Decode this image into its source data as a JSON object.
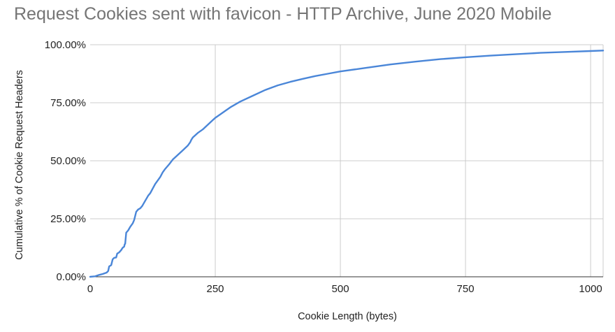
{
  "chart_data": {
    "type": "line",
    "title": "Request Cookies sent with favicon - HTTP Archive, June 2020 Mobile",
    "xlabel": "Cookie Length (bytes)",
    "ylabel": "Cumulative % of Cookie Request Headers",
    "xlim": [
      0,
      1025
    ],
    "ylim": [
      0,
      100
    ],
    "x_ticks": [
      0,
      250,
      500,
      750,
      1000
    ],
    "x_tick_labels": [
      "0",
      "250",
      "500",
      "750",
      "1000"
    ],
    "y_ticks": [
      0,
      25,
      50,
      75,
      100
    ],
    "y_tick_labels": [
      "0.00%",
      "25.00%",
      "50.00%",
      "75.00%",
      "100.00%"
    ],
    "grid": true,
    "colors": {
      "line": "#4a86d8",
      "grid": "#cccccc",
      "axis": "#333333",
      "title": "#757575"
    },
    "series": [
      {
        "points": [
          [
            0,
            0
          ],
          [
            10,
            0.2
          ],
          [
            18,
            0.8
          ],
          [
            25,
            1.2
          ],
          [
            33,
            1.8
          ],
          [
            36,
            2.5
          ],
          [
            38,
            4.5
          ],
          [
            42,
            5
          ],
          [
            45,
            7.5
          ],
          [
            48,
            8.2
          ],
          [
            52,
            8.3
          ],
          [
            54,
            10
          ],
          [
            58,
            10.5
          ],
          [
            62,
            11.5
          ],
          [
            65,
            12.5
          ],
          [
            68,
            13
          ],
          [
            69,
            14
          ],
          [
            70,
            14.2
          ],
          [
            72,
            19
          ],
          [
            76,
            20
          ],
          [
            80,
            21.5
          ],
          [
            85,
            23
          ],
          [
            88,
            24.5
          ],
          [
            92,
            28
          ],
          [
            96,
            29
          ],
          [
            100,
            29.5
          ],
          [
            104,
            30.5
          ],
          [
            108,
            32
          ],
          [
            112,
            33.5
          ],
          [
            116,
            35
          ],
          [
            120,
            36
          ],
          [
            125,
            38
          ],
          [
            130,
            40
          ],
          [
            135,
            41.5
          ],
          [
            140,
            43
          ],
          [
            145,
            45
          ],
          [
            150,
            46.5
          ],
          [
            158,
            48.5
          ],
          [
            165,
            50.5
          ],
          [
            175,
            52.5
          ],
          [
            185,
            54.5
          ],
          [
            195,
            56.5
          ],
          [
            200,
            58
          ],
          [
            202,
            59
          ],
          [
            205,
            60
          ],
          [
            215,
            62
          ],
          [
            225,
            63.5
          ],
          [
            235,
            65.5
          ],
          [
            245,
            67.5
          ],
          [
            250,
            68.5
          ],
          [
            260,
            70
          ],
          [
            270,
            71.5
          ],
          [
            280,
            73
          ],
          [
            300,
            75.5
          ],
          [
            325,
            78
          ],
          [
            350,
            80.5
          ],
          [
            375,
            82.5
          ],
          [
            400,
            84
          ],
          [
            425,
            85.3
          ],
          [
            450,
            86.5
          ],
          [
            475,
            87.5
          ],
          [
            500,
            88.5
          ],
          [
            550,
            90
          ],
          [
            600,
            91.5
          ],
          [
            650,
            92.7
          ],
          [
            700,
            93.8
          ],
          [
            750,
            94.6
          ],
          [
            800,
            95.3
          ],
          [
            850,
            95.9
          ],
          [
            900,
            96.5
          ],
          [
            950,
            96.9
          ],
          [
            1000,
            97.3
          ],
          [
            1025,
            97.5
          ]
        ]
      }
    ]
  }
}
